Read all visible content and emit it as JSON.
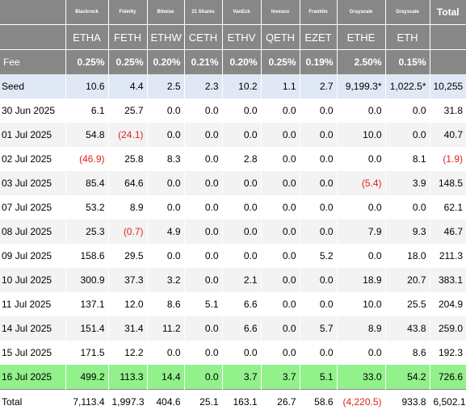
{
  "columns": [
    {
      "issuer": "Blackrock",
      "ticker": "ETHA",
      "fee": "0.25%"
    },
    {
      "issuer": "Fidelity",
      "ticker": "FETH",
      "fee": "0.25%"
    },
    {
      "issuer": "Bitwise",
      "ticker": "ETHW",
      "fee": "0.20%"
    },
    {
      "issuer": "21 Shares",
      "ticker": "CETH",
      "fee": "0.21%"
    },
    {
      "issuer": "VanEck",
      "ticker": "ETHV",
      "fee": "0.20%"
    },
    {
      "issuer": "Invesco",
      "ticker": "QETH",
      "fee": "0.25%"
    },
    {
      "issuer": "Franklin",
      "ticker": "EZET",
      "fee": "0.19%"
    },
    {
      "issuer": "Grayscale",
      "ticker": "ETHE",
      "fee": "2.50%"
    },
    {
      "issuer": "Grayscale",
      "ticker": "ETH",
      "fee": "0.15%"
    }
  ],
  "total_header": "Total",
  "fee_label": "Fee",
  "rows": [
    {
      "label": "Seed",
      "values": [
        "10.6",
        "4.4",
        "2.5",
        "2.3",
        "10.2",
        "1.1",
        "2.7",
        "9,199.3*",
        "1,022.5*",
        "10,255"
      ],
      "style": "seed"
    },
    {
      "label": "30 Jun 2025",
      "values": [
        "6.1",
        "25.7",
        "0.0",
        "0.0",
        "0.0",
        "0.0",
        "0.0",
        "0.0",
        "0.0",
        "31.8"
      ],
      "style": ""
    },
    {
      "label": "01 Jul 2025",
      "values": [
        "54.8",
        "(24.1)",
        "0.0",
        "0.0",
        "0.0",
        "0.0",
        "0.0",
        "10.0",
        "0.0",
        "40.7"
      ],
      "style": "alt"
    },
    {
      "label": "02 Jul 2025",
      "values": [
        "(46.9)",
        "25.8",
        "8.3",
        "0.0",
        "2.8",
        "0.0",
        "0.0",
        "0.0",
        "8.1",
        "(1.9)"
      ],
      "style": ""
    },
    {
      "label": "03 Jul 2025",
      "values": [
        "85.4",
        "64.6",
        "0.0",
        "0.0",
        "0.0",
        "0.0",
        "0.0",
        "(5.4)",
        "3.9",
        "148.5"
      ],
      "style": "alt"
    },
    {
      "label": "07 Jul 2025",
      "values": [
        "53.2",
        "8.9",
        "0.0",
        "0.0",
        "0.0",
        "0.0",
        "0.0",
        "0.0",
        "0.0",
        "62.1"
      ],
      "style": ""
    },
    {
      "label": "08 Jul 2025",
      "values": [
        "25.3",
        "(0.7)",
        "4.9",
        "0.0",
        "0.0",
        "0.0",
        "0.0",
        "7.9",
        "9.3",
        "46.7"
      ],
      "style": "alt"
    },
    {
      "label": "09 Jul 2025",
      "values": [
        "158.6",
        "29.5",
        "0.0",
        "0.0",
        "0.0",
        "0.0",
        "5.2",
        "0.0",
        "18.0",
        "211.3"
      ],
      "style": ""
    },
    {
      "label": "10 Jul 2025",
      "values": [
        "300.9",
        "37.3",
        "3.2",
        "0.0",
        "2.1",
        "0.0",
        "0.0",
        "18.9",
        "20.7",
        "383.1"
      ],
      "style": "alt"
    },
    {
      "label": "11 Jul 2025",
      "values": [
        "137.1",
        "12.0",
        "8.6",
        "5.1",
        "6.6",
        "0.0",
        "0.0",
        "10.0",
        "25.5",
        "204.9"
      ],
      "style": ""
    },
    {
      "label": "14 Jul 2025",
      "values": [
        "151.4",
        "31.4",
        "11.2",
        "0.0",
        "6.6",
        "0.0",
        "5.7",
        "8.9",
        "43.8",
        "259.0"
      ],
      "style": "alt"
    },
    {
      "label": "15 Jul 2025",
      "values": [
        "171.5",
        "12.2",
        "0.0",
        "0.0",
        "0.0",
        "0.0",
        "0.0",
        "0.0",
        "8.6",
        "192.3"
      ],
      "style": ""
    },
    {
      "label": "16 Jul 2025",
      "values": [
        "499.2",
        "113.3",
        "14.4",
        "0.0",
        "3.7",
        "3.7",
        "5.1",
        "33.0",
        "54.2",
        "726.6"
      ],
      "style": "highlight"
    },
    {
      "label": "Total",
      "values": [
        "7,113.4",
        "1,997.3",
        "404.6",
        "25.1",
        "163.1",
        "26.7",
        "58.6",
        "(4,220.5)",
        "933.8",
        "6,502.1"
      ],
      "style": "total"
    }
  ]
}
